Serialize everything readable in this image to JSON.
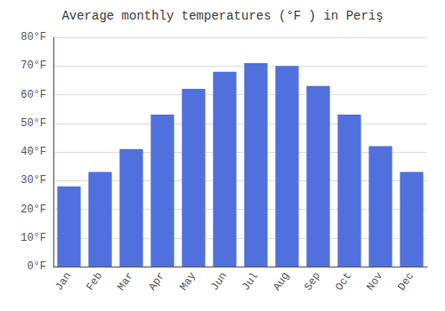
{
  "chart_data": {
    "type": "bar",
    "title": "Average monthly temperatures (°F ) in Periş",
    "categories": [
      "Jan",
      "Feb",
      "Mar",
      "Apr",
      "May",
      "Jun",
      "Jul",
      "Aug",
      "Sep",
      "Oct",
      "Nov",
      "Dec"
    ],
    "values": [
      28,
      33,
      41,
      53,
      62,
      68,
      71,
      70,
      63,
      53,
      42,
      33
    ],
    "ylim": [
      0,
      80
    ],
    "yticks": [
      {
        "value": 0,
        "label": "0°F"
      },
      {
        "value": 10,
        "label": "10°F"
      },
      {
        "value": 20,
        "label": "20°F"
      },
      {
        "value": 30,
        "label": "30°F"
      },
      {
        "value": 40,
        "label": "40°F"
      },
      {
        "value": 50,
        "label": "50°F"
      },
      {
        "value": 60,
        "label": "60°F"
      },
      {
        "value": 70,
        "label": "70°F"
      },
      {
        "value": 80,
        "label": "80°F"
      }
    ],
    "grid": true
  }
}
